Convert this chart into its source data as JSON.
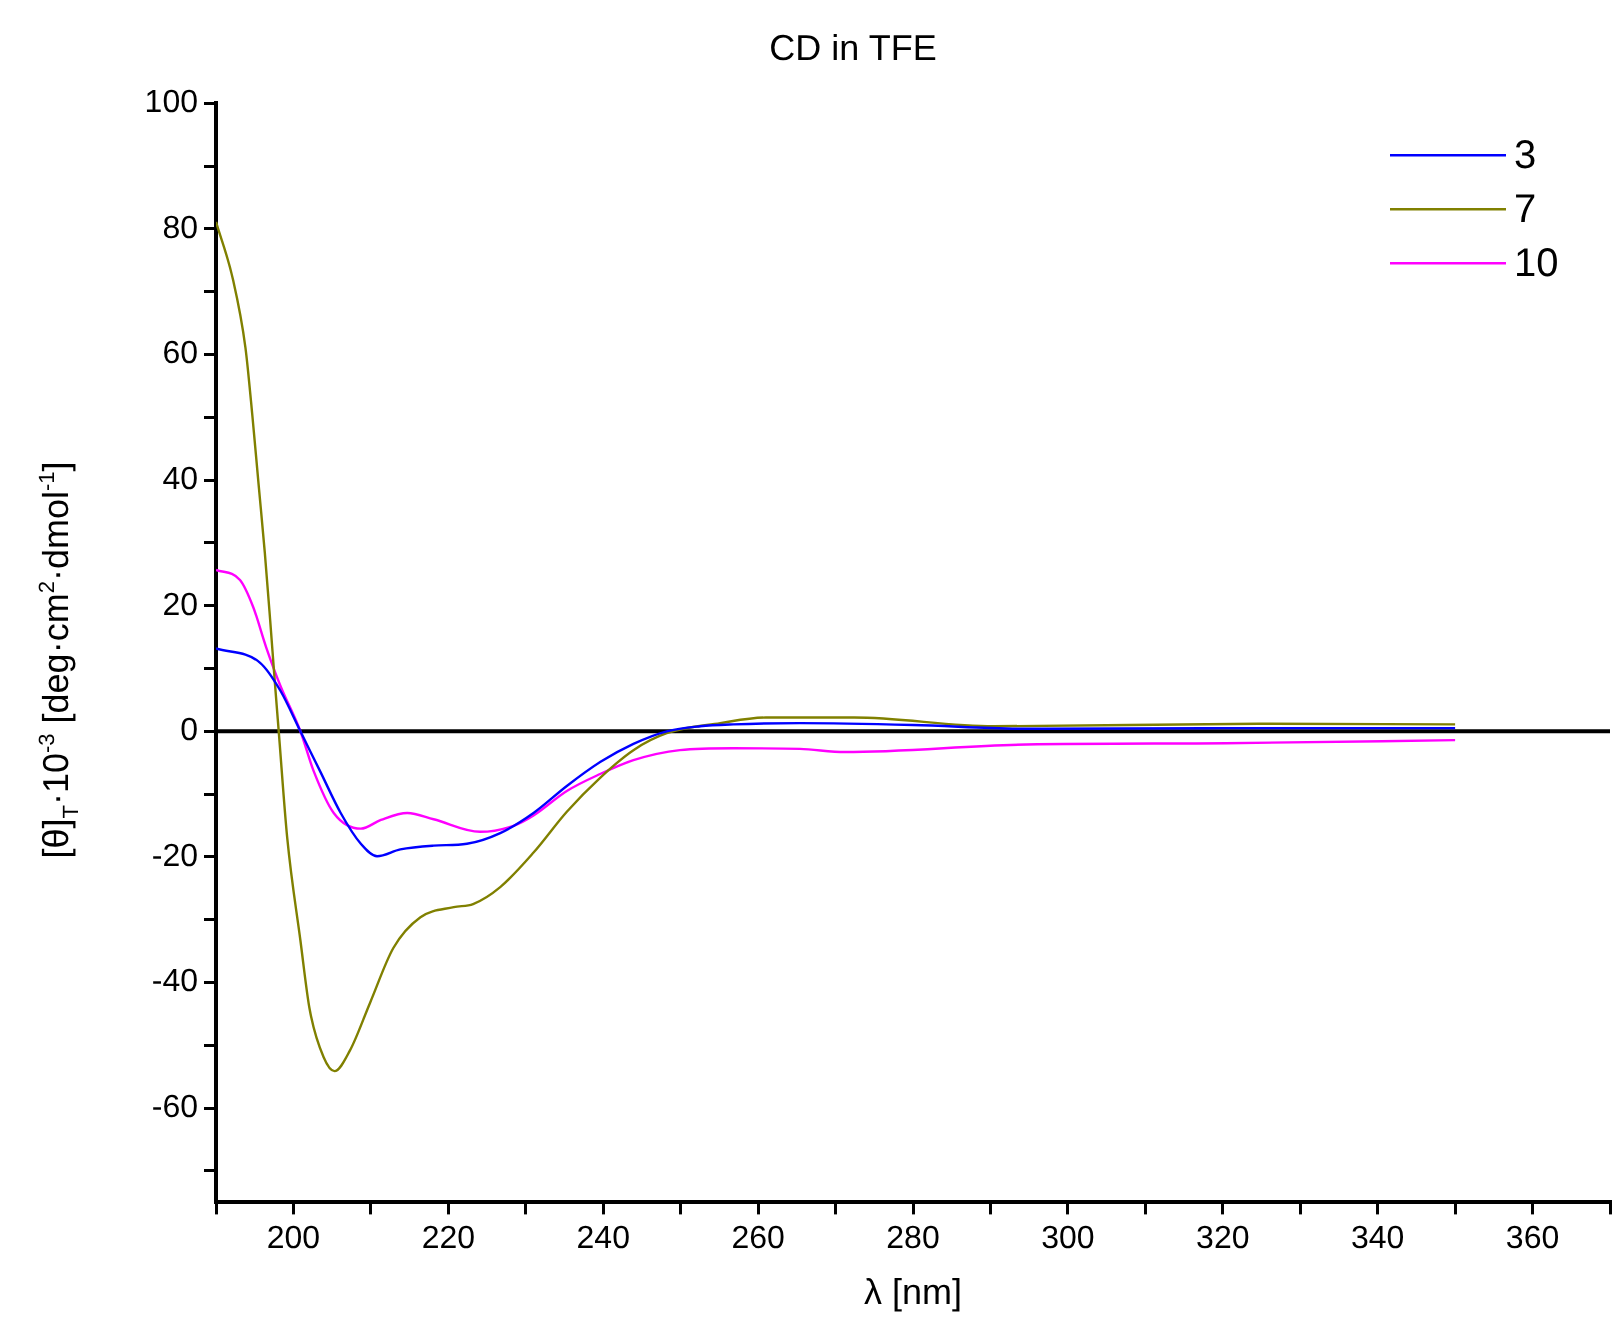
{
  "chart_data": {
    "type": "line",
    "title": "CD in TFE",
    "xlabel": "λ [nm]",
    "ylabel": "[θ]$_{T}$·10$^{-3}$ [deg·cm$^{2}$·dmol$^{-1}$]",
    "xlim": [
      190,
      370
    ],
    "xticks": [
      {
        "value": 190,
        "label": null
      },
      200,
      {
        "value": 210,
        "label": null
      },
      220,
      {
        "value": 230,
        "label": null
      },
      240,
      {
        "value": 250,
        "label": null
      },
      260,
      {
        "value": 270,
        "label": null
      },
      280,
      {
        "value": 290,
        "label": null
      },
      300,
      {
        "value": 310,
        "label": null
      },
      320,
      {
        "value": 330,
        "label": null
      },
      340,
      {
        "value": 350,
        "label": null
      },
      360,
      {
        "value": 370,
        "label": null
      }
    ],
    "ylim": [
      -75,
      100
    ],
    "yticks": [
      {
        "value": -70,
        "label": null
      },
      -60,
      {
        "value": -50,
        "label": null
      },
      -40,
      {
        "value": -30,
        "label": null
      },
      -20,
      {
        "value": -10,
        "label": null
      },
      0,
      {
        "value": 10,
        "label": null
      },
      20,
      {
        "value": 30,
        "label": null
      },
      40,
      {
        "value": 50,
        "label": null
      },
      60,
      {
        "value": 70,
        "label": null
      },
      80,
      {
        "value": 90,
        "label": null
      },
      100
    ],
    "grid": false,
    "legend": "top right",
    "marker": "none",
    "line_style": "solid",
    "ref_lines": [
      {
        "axis": "y",
        "value": 0,
        "color": "#000000"
      }
    ],
    "series": [
      {
        "name": "3",
        "color": "#0000ff",
        "x": [
          190,
          195.7,
          198.3,
          200.9,
          203.5,
          206.1,
          208.7,
          210.8,
          213.8,
          218.1,
          222.4,
          226.7,
          231,
          235.3,
          239.6,
          243.9,
          248.2,
          252.5,
          256.8,
          265.4,
          280,
          294.6,
          320,
          350
        ],
        "values": [
          13.2,
          10.9,
          6.5,
          0,
          -6.5,
          -13,
          -17.9,
          -19.9,
          -18.8,
          -18.2,
          -17.9,
          -16.2,
          -13,
          -8.7,
          -4.9,
          -2,
          0,
          0.8,
          1.1,
          1.3,
          1,
          0.4,
          0.5,
          0.5
        ]
      },
      {
        "name": "7",
        "color": "#808000",
        "x": [
          190,
          192.2,
          193.8,
          194.7,
          195.5,
          196.3,
          197,
          197.6,
          198.1,
          199.2,
          200.9,
          202.1,
          203.9,
          205.3,
          207.3,
          209.9,
          212.9,
          216.4,
          220.7,
          223.2,
          226.7,
          231,
          235.3,
          239.6,
          243.9,
          248.2,
          255.1,
          261,
          272.4,
          290.4,
          324.9,
          350
        ],
        "values": [
          81.1,
          71.9,
          61.1,
          50.2,
          39.3,
          28.5,
          17.6,
          7.8,
          0,
          -17,
          -33.3,
          -44.3,
          -51.9,
          -54.1,
          -50.8,
          -43.2,
          -34.5,
          -29.6,
          -28,
          -27.5,
          -24.8,
          -19.3,
          -12.8,
          -7.4,
          -3,
          -0.3,
          1.3,
          2.2,
          2.2,
          0.8,
          1.2,
          1.1
        ]
      },
      {
        "name": "10",
        "color": "#ff00ff",
        "x": [
          190,
          193.1,
          194.8,
          196.5,
          198.3,
          200.9,
          202.6,
          205.2,
          208.7,
          211.3,
          214.7,
          218.1,
          224.1,
          228.5,
          231,
          235.3,
          239.6,
          243.9,
          249.9,
          256.8,
          265.4,
          271.2,
          294.6,
          320.4,
          350
        ],
        "values": [
          25.7,
          24.1,
          19.8,
          13.3,
          7.3,
          0,
          -6.3,
          -13,
          -15.5,
          -14.1,
          -13,
          -14,
          -16,
          -15,
          -13.4,
          -9.5,
          -6.8,
          -4.6,
          -3,
          -2.7,
          -2.8,
          -3.3,
          -2.1,
          -1.9,
          -1.4
        ]
      }
    ]
  }
}
